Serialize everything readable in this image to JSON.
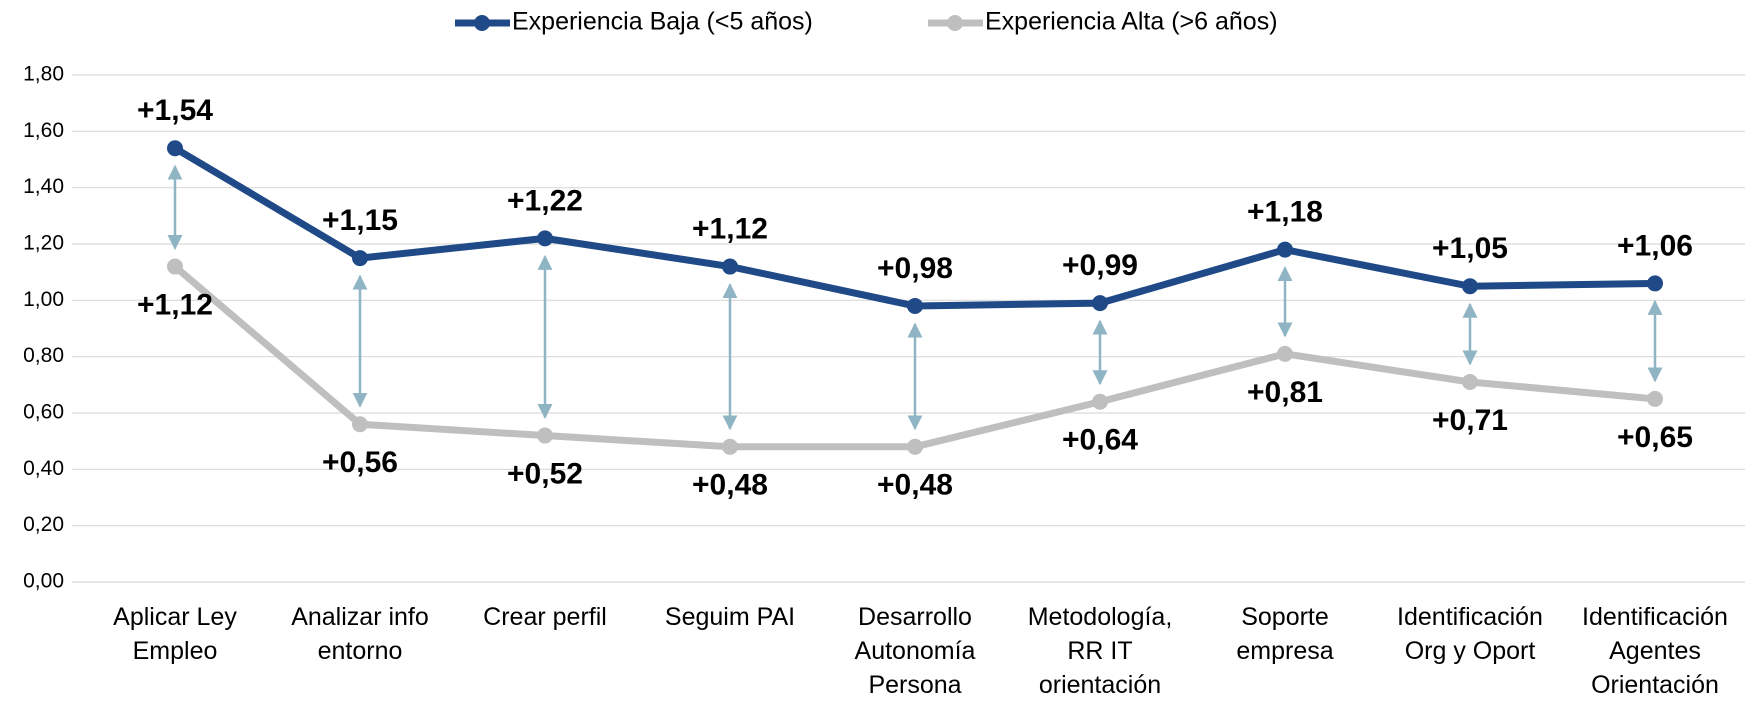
{
  "chart_data": {
    "type": "line",
    "categories": [
      "Aplicar Ley\nEmpleo",
      "Analizar info\nentorno",
      "Crear perfil",
      "Seguim PAI",
      "Desarrollo\nAutonomía\nPersona",
      "Metodología,\nRR IT\norientación",
      "Soporte\nempresa",
      "Identificación\nOrg y Oport",
      "Identificación\nAgentes\nOrientación"
    ],
    "series": [
      {
        "name": "Experiencia Baja (<5 años)",
        "color": "#1f4a87",
        "values": [
          1.54,
          1.15,
          1.22,
          1.12,
          0.98,
          0.99,
          1.18,
          1.05,
          1.06
        ],
        "value_labels": [
          "+1,54",
          "+1,15",
          "+1,22",
          "+1,12",
          "+0,98",
          "+0,99",
          "+1,18",
          "+1,05",
          "+1,06"
        ]
      },
      {
        "name": "Experiencia Alta (>6 años)",
        "color": "#bfbfbf",
        "values": [
          1.12,
          0.56,
          0.52,
          0.48,
          0.48,
          0.64,
          0.81,
          0.71,
          0.65
        ],
        "value_labels": [
          "+1,12",
          "+0,56",
          "+0,52",
          "+0,48",
          "+0,48",
          "+0,64",
          "+0,81",
          "+0,71",
          "+0,65"
        ]
      }
    ],
    "ylim": [
      0,
      1.8
    ],
    "yticks": [
      {
        "value": 0,
        "label": "0,00"
      },
      {
        "value": 0.2,
        "label": "0,20"
      },
      {
        "value": 0.4,
        "label": "0,40"
      },
      {
        "value": 0.6,
        "label": "0,60"
      },
      {
        "value": 0.8,
        "label": "0,80"
      },
      {
        "value": 1,
        "label": "1,00"
      },
      {
        "value": 1.2,
        "label": "1,20"
      },
      {
        "value": 1.4,
        "label": "1,40"
      },
      {
        "value": 1.6,
        "label": "1,60"
      },
      {
        "value": 1.8,
        "label": "1,80"
      }
    ],
    "grid": true,
    "legend": "top"
  }
}
